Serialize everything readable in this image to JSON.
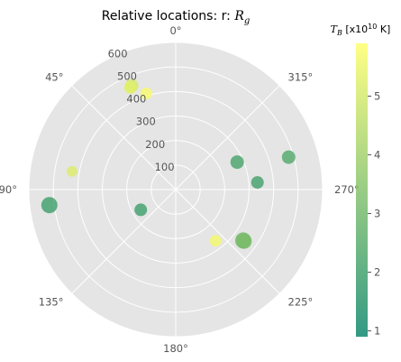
{
  "chart_data": {
    "type": "scatter",
    "projection": "polar",
    "title": "Relative locations: r: R_g",
    "title_main": "Relative locations: r: ",
    "title_symbol": "R",
    "title_sub": "g",
    "theta_zero": "top",
    "theta_direction": "counterclockwise",
    "theta_ticks": [
      0,
      45,
      90,
      135,
      180,
      225,
      270,
      315
    ],
    "theta_tick_labels": [
      "0°",
      "45°",
      "90°",
      "135°",
      "180°",
      "225°",
      "270°",
      "315°"
    ],
    "r_ticks": [
      100,
      200,
      300,
      400,
      500,
      600
    ],
    "r_tick_labels": [
      "100",
      "200",
      "300",
      "400",
      "500",
      "600"
    ],
    "rlim": [
      0,
      600
    ],
    "grid": true,
    "colormap": "summer",
    "colorbar": {
      "label_symbol": "T",
      "label_sub": "B",
      "label_prefix": " [x10",
      "label_exp": "10",
      "label_suffix": " K]",
      "min": 0.9,
      "max": 5.9,
      "ticks": [
        1,
        2,
        3,
        4,
        5
      ],
      "tick_labels": [
        "1",
        "2",
        "3",
        "4",
        "5"
      ]
    },
    "points": [
      {
        "theta": 17,
        "r": 410,
        "value": 5.8,
        "size": 6.5
      },
      {
        "theta": 23,
        "r": 460,
        "value": 5.1,
        "size": 7.5
      },
      {
        "theta": 24,
        "r": 455,
        "value": 5.3,
        "size": 7.0
      },
      {
        "theta": 80,
        "r": 430,
        "value": 5.2,
        "size": 6.0
      },
      {
        "theta": 97,
        "r": 520,
        "value": 2.0,
        "size": 9.0
      },
      {
        "theta": 120,
        "r": 165,
        "value": 2.0,
        "size": 7.0
      },
      {
        "theta": 218,
        "r": 265,
        "value": 5.7,
        "size": 6.5
      },
      {
        "theta": 233,
        "r": 345,
        "value": 3.0,
        "size": 9.0
      },
      {
        "theta": 233,
        "r": 350,
        "value": 3.3,
        "size": 8.5
      },
      {
        "theta": 275,
        "r": 335,
        "value": 2.1,
        "size": 7.0
      },
      {
        "theta": 286,
        "r": 480,
        "value": 2.4,
        "size": 7.5
      },
      {
        "theta": 294,
        "r": 275,
        "value": 2.2,
        "size": 7.5
      }
    ]
  }
}
